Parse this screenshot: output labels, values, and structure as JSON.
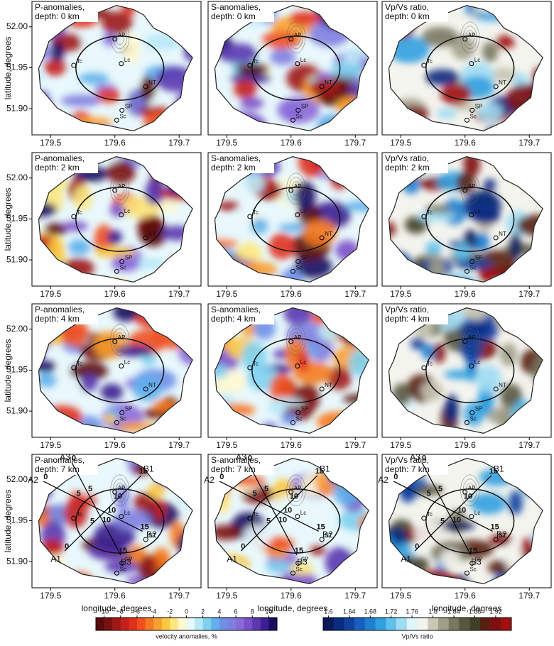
{
  "chart_data": {
    "type": "map",
    "xlim": [
      179.471,
      179.734
    ],
    "ylim": [
      51.868,
      52.031
    ],
    "xticks": [
      179.5,
      179.6,
      179.7
    ],
    "yticks": [
      {
        "value": 51.9,
        "label": "51.90"
      },
      51.95,
      {
        "value": 52,
        "label": "52.00"
      }
    ],
    "xlabel": "longitude, degrees",
    "ylabel": "latitude, degrees",
    "panels": [
      {
        "title": [
          "P-anomalies,",
          "depth: 0 km"
        ],
        "colorbar": 0
      },
      {
        "title": [
          "S-anomalies,",
          "depth: 0 km"
        ],
        "colorbar": 0
      },
      {
        "title": [
          "Vp/Vs ratio,",
          "depth: 0 km"
        ],
        "colorbar": 1
      },
      {
        "title": [
          "P-anomalies,",
          "depth: 2 km"
        ],
        "colorbar": 0
      },
      {
        "title": [
          "S-anomalies,",
          "depth: 2 km"
        ],
        "colorbar": 0
      },
      {
        "title": [
          "Vp/Vs ratio,",
          "depth: 2 km"
        ],
        "colorbar": 1
      },
      {
        "title": [
          "P-anomalies,",
          "depth: 4 km"
        ],
        "colorbar": 0
      },
      {
        "title": [
          "S-anomalies,",
          "depth: 4 km"
        ],
        "colorbar": 0
      },
      {
        "title": [
          "Vp/Vs ratio,",
          "depth: 4 km"
        ],
        "colorbar": 1
      },
      {
        "title": [
          "P-anomalies,",
          "depth: 7 km"
        ],
        "colorbar": 0,
        "show_profiles": true
      },
      {
        "title": [
          "S-anomalies,",
          "depth: 7 km"
        ],
        "colorbar": 0,
        "show_profiles": true
      },
      {
        "title": [
          "Vp/Vs ratio,",
          "depth: 7 km"
        ],
        "colorbar": 1,
        "show_profiles": true
      }
    ],
    "sites": [
      {
        "name": "AP",
        "lon": 179.6,
        "lat": 51.985
      },
      {
        "name": "Lc",
        "lon": 179.61,
        "lat": 51.955
      },
      {
        "name": "Tc",
        "lon": 179.536,
        "lat": 51.953
      },
      {
        "name": "NT",
        "lon": 179.648,
        "lat": 51.927
      },
      {
        "name": "SP",
        "lon": 179.611,
        "lat": 51.898
      },
      {
        "name": "Sc",
        "lon": 179.603,
        "lat": 51.886
      }
    ],
    "profiles": [
      {
        "start": "A1",
        "end": "B1",
        "from": [
          179.522,
          51.913
        ],
        "to": [
          179.641,
          52.005
        ]
      },
      {
        "start": "A2",
        "end": "B2",
        "from": [
          179.489,
          51.998
        ],
        "to": [
          179.643,
          51.937
        ]
      },
      {
        "start": "A3",
        "end": "B3",
        "from": [
          179.533,
          52.021
        ],
        "to": [
          179.609,
          51.908
        ]
      }
    ],
    "profile_ticks": [
      0,
      5,
      10,
      15
    ],
    "colorbars": [
      {
        "label": "velocity anomalies, %",
        "lim": [
          -11,
          11
        ],
        "ticks": [
          -10,
          -8,
          -6,
          -4,
          -2,
          0,
          2,
          4,
          6,
          8,
          10
        ],
        "colors": [
          "#5a0a0a",
          "#7a1010",
          "#a01818",
          "#c42020",
          "#e03020",
          "#f05020",
          "#f57a20",
          "#f9a030",
          "#fbc840",
          "#fde880",
          "#fff8d0",
          "#e8f8fc",
          "#b8e8f8",
          "#80d0f0",
          "#60b0ec",
          "#7090e8",
          "#8080e0",
          "#8a6ad8",
          "#7a50c8",
          "#5a38b0",
          "#3a2090",
          "#1a0a60"
        ]
      },
      {
        "label": "Vp/Vs ratio",
        "lim": [
          1.59,
          1.95
        ],
        "ticks": [
          1.6,
          1.64,
          1.68,
          1.72,
          1.76,
          1.8,
          1.84,
          1.88,
          1.92
        ],
        "colors": [
          "#0a1a5a",
          "#0a2a80",
          "#1040a0",
          "#1860c0",
          "#2080d0",
          "#30a0e0",
          "#60c0ec",
          "#a0dcf4",
          "#e0f4fc",
          "#f4f4ee",
          "#c8c8b4",
          "#a0a088",
          "#787860",
          "#585840",
          "#404028",
          "#582010",
          "#801010",
          "#a01010"
        ]
      }
    ]
  }
}
